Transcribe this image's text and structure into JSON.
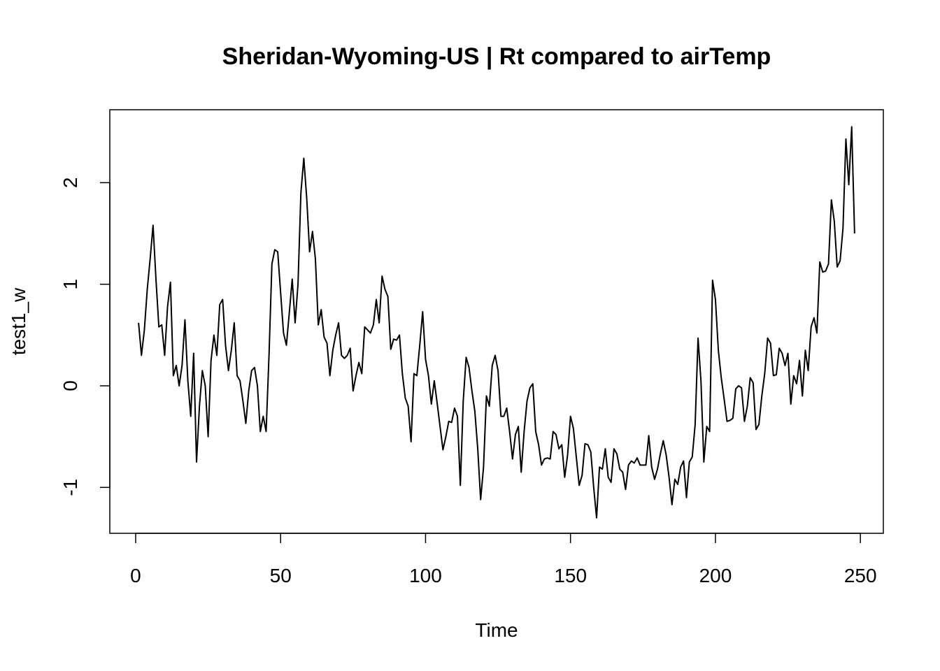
{
  "chart_data": {
    "type": "line",
    "title": "Sheridan-Wyoming-US | Rt compared to airTemp",
    "xlabel": "Time",
    "ylabel": "test1_w",
    "xlim": [
      -8.92,
      257.92
    ],
    "ylim": [
      -1.452,
      2.718
    ],
    "x_ticks": [
      0,
      50,
      100,
      150,
      200,
      250
    ],
    "y_ticks": [
      -1,
      0,
      1,
      2
    ],
    "grid": false,
    "legend": "none",
    "line_color": "#000000",
    "series": [
      {
        "x_start": 1,
        "x_step": 1,
        "values": [
          0.62,
          0.3,
          0.55,
          0.95,
          1.25,
          1.58,
          1.05,
          0.58,
          0.6,
          0.3,
          0.78,
          1.02,
          0.1,
          0.2,
          0.0,
          0.2,
          0.65,
          0.05,
          -0.3,
          0.32,
          -0.75,
          -0.2,
          0.15,
          0.0,
          -0.5,
          0.25,
          0.5,
          0.3,
          0.8,
          0.85,
          0.4,
          0.15,
          0.35,
          0.62,
          0.1,
          0.05,
          -0.15,
          -0.37,
          -0.05,
          0.15,
          0.18,
          0.0,
          -0.45,
          -0.3,
          -0.45,
          0.3,
          1.2,
          1.34,
          1.32,
          0.92,
          0.52,
          0.4,
          0.72,
          1.05,
          0.62,
          1.0,
          1.9,
          2.24,
          1.85,
          1.32,
          1.52,
          1.25,
          0.6,
          0.75,
          0.48,
          0.42,
          0.1,
          0.35,
          0.5,
          0.62,
          0.3,
          0.27,
          0.3,
          0.37,
          -0.05,
          0.1,
          0.23,
          0.12,
          0.58,
          0.55,
          0.52,
          0.6,
          0.85,
          0.62,
          1.08,
          0.95,
          0.88,
          0.36,
          0.46,
          0.45,
          0.5,
          0.12,
          -0.12,
          -0.2,
          -0.55,
          0.12,
          0.1,
          0.4,
          0.73,
          0.26,
          0.1,
          -0.18,
          0.05,
          -0.17,
          -0.4,
          -0.63,
          -0.5,
          -0.35,
          -0.36,
          -0.22,
          -0.3,
          -0.98,
          -0.15,
          0.28,
          0.18,
          -0.05,
          -0.25,
          -0.62,
          -1.12,
          -0.8,
          -0.1,
          -0.2,
          0.2,
          0.3,
          0.15,
          -0.3,
          -0.3,
          -0.22,
          -0.45,
          -0.72,
          -0.48,
          -0.4,
          -0.85,
          -0.45,
          -0.15,
          -0.02,
          0.02,
          -0.45,
          -0.58,
          -0.78,
          -0.72,
          -0.71,
          -0.72,
          -0.45,
          -0.48,
          -0.62,
          -0.58,
          -0.9,
          -0.68,
          -0.3,
          -0.42,
          -0.7,
          -0.98,
          -0.88,
          -0.57,
          -0.58,
          -0.65,
          -1.0,
          -1.3,
          -0.8,
          -0.82,
          -0.62,
          -0.9,
          -0.95,
          -0.62,
          -0.67,
          -0.82,
          -0.85,
          -1.02,
          -0.78,
          -0.74,
          -0.76,
          -0.71,
          -0.78,
          -0.78,
          -0.78,
          -0.49,
          -0.8,
          -0.92,
          -0.82,
          -0.67,
          -0.54,
          -0.68,
          -0.9,
          -1.17,
          -0.92,
          -0.97,
          -0.8,
          -0.74,
          -1.1,
          -0.75,
          -0.7,
          -0.38,
          0.47,
          0.05,
          -0.75,
          -0.4,
          -0.45,
          1.04,
          0.85,
          0.35,
          0.08,
          -0.13,
          -0.35,
          -0.34,
          -0.32,
          -0.03,
          0.0,
          -0.02,
          -0.35,
          -0.2,
          0.08,
          0.03,
          -0.43,
          -0.38,
          -0.1,
          0.12,
          0.47,
          0.42,
          0.1,
          0.11,
          0.37,
          0.32,
          0.2,
          0.32,
          -0.18,
          0.1,
          0.02,
          0.25,
          -0.1,
          0.35,
          0.15,
          0.58,
          0.67,
          0.52,
          1.22,
          1.12,
          1.13,
          1.2,
          1.83,
          1.62,
          1.17,
          1.23,
          1.55,
          2.43,
          1.98,
          2.55,
          1.5
        ]
      }
    ]
  }
}
